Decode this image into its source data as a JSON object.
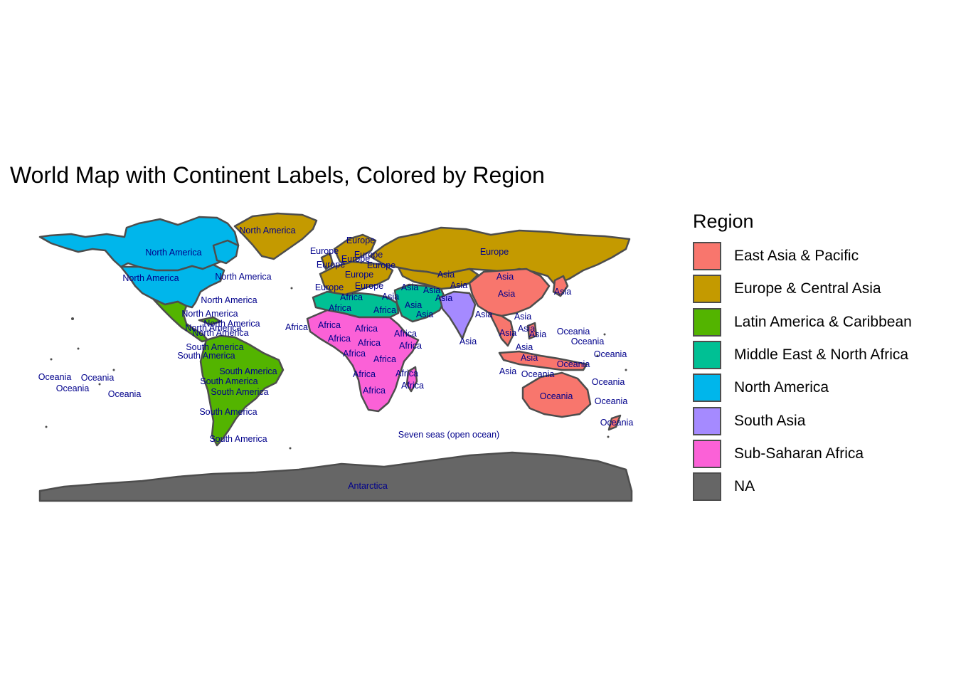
{
  "title": "World Map with Continent Labels, Colored by Region",
  "legend": {
    "title": "Region",
    "items": [
      {
        "label": "East Asia & Pacific",
        "color": "#F8766D"
      },
      {
        "label": "Europe & Central Asia",
        "color": "#C49A00"
      },
      {
        "label": "Latin America & Caribbean",
        "color": "#53B400"
      },
      {
        "label": "Middle East & North Africa",
        "color": "#00C094"
      },
      {
        "label": "North America",
        "color": "#00B6EB"
      },
      {
        "label": "South Asia",
        "color": "#A58AFF"
      },
      {
        "label": "Sub-Saharan Africa",
        "color": "#FB61D7"
      },
      {
        "label": "NA",
        "color": "#666666"
      }
    ]
  },
  "map_labels": [
    "North America",
    "North America",
    "North America",
    "North America",
    "North America",
    "North America",
    "North America",
    "North America",
    "North America",
    "South America",
    "South America",
    "South America",
    "South America",
    "South America",
    "South America",
    "South America",
    "Europe",
    "Europe",
    "Europe",
    "Europe",
    "Europe",
    "Europe",
    "Europe",
    "Europe",
    "Europe",
    "Europe",
    "Asia",
    "Asia",
    "Asia",
    "Asia",
    "Asia",
    "Asia",
    "Asia",
    "Asia",
    "Asia",
    "Asia",
    "Asia",
    "Asia",
    "Asia",
    "Asia",
    "Asia",
    "Asia",
    "Asia",
    "Asia",
    "Asia",
    "Asia",
    "Africa",
    "Africa",
    "Africa",
    "Africa",
    "Africa",
    "Africa",
    "Africa",
    "Africa",
    "Africa",
    "Africa",
    "Africa",
    "Africa",
    "Africa",
    "Africa",
    "Africa",
    "Africa",
    "Oceania",
    "Oceania",
    "Oceania",
    "Oceania",
    "Oceania",
    "Oceania",
    "Oceania",
    "Oceania",
    "Oceania",
    "Oceania",
    "Oceania",
    "Oceania",
    "Oceania",
    "Seven seas (open ocean)",
    "Antarctica"
  ]
}
